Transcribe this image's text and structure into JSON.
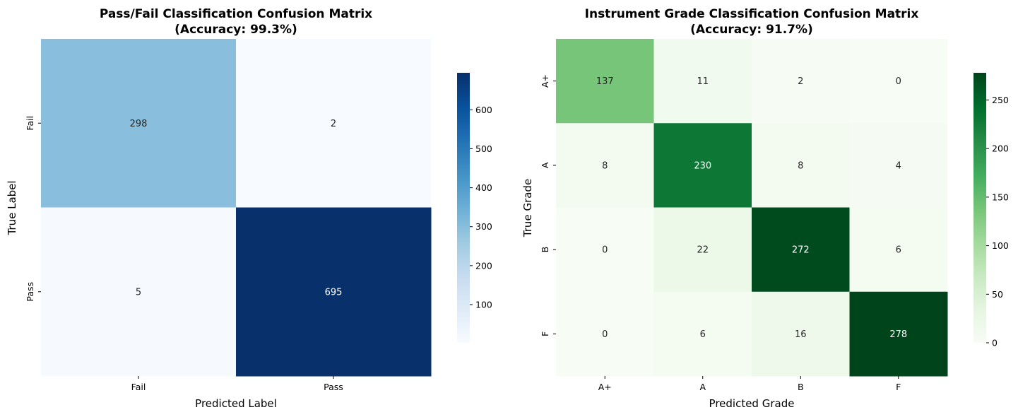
{
  "chart_data": [
    {
      "type": "heatmap",
      "title": "Pass/Fail Classification Confusion Matrix",
      "subtitle": "(Accuracy: 99.3%)",
      "xlabel": "Predicted Label",
      "ylabel": "True Label",
      "x_categories": [
        "Fail",
        "Pass"
      ],
      "y_categories": [
        "Fail",
        "Pass"
      ],
      "values": [
        [
          298,
          2
        ],
        [
          5,
          695
        ]
      ],
      "colormap": "Blues",
      "vmin": 2,
      "vmax": 695,
      "colorbar_ticks": [
        100,
        200,
        300,
        400,
        500,
        600
      ],
      "colors": {
        "low": "#f7fbff",
        "high": "#08306b"
      }
    },
    {
      "type": "heatmap",
      "title": "Instrument Grade Classification Confusion Matrix",
      "subtitle": "(Accuracy: 91.7%)",
      "xlabel": "Predicted Grade",
      "ylabel": "True Grade",
      "x_categories": [
        "A+",
        "A",
        "B",
        "F"
      ],
      "y_categories": [
        "A+",
        "A",
        "B",
        "F"
      ],
      "values": [
        [
          137,
          11,
          2,
          0
        ],
        [
          8,
          230,
          8,
          4
        ],
        [
          0,
          22,
          272,
          6
        ],
        [
          0,
          6,
          16,
          278
        ]
      ],
      "colormap": "Greens",
      "vmin": 0,
      "vmax": 278,
      "colorbar_ticks": [
        0,
        50,
        100,
        150,
        200,
        250
      ],
      "colors": {
        "low": "#f7fcf5",
        "high": "#00441b"
      }
    }
  ]
}
